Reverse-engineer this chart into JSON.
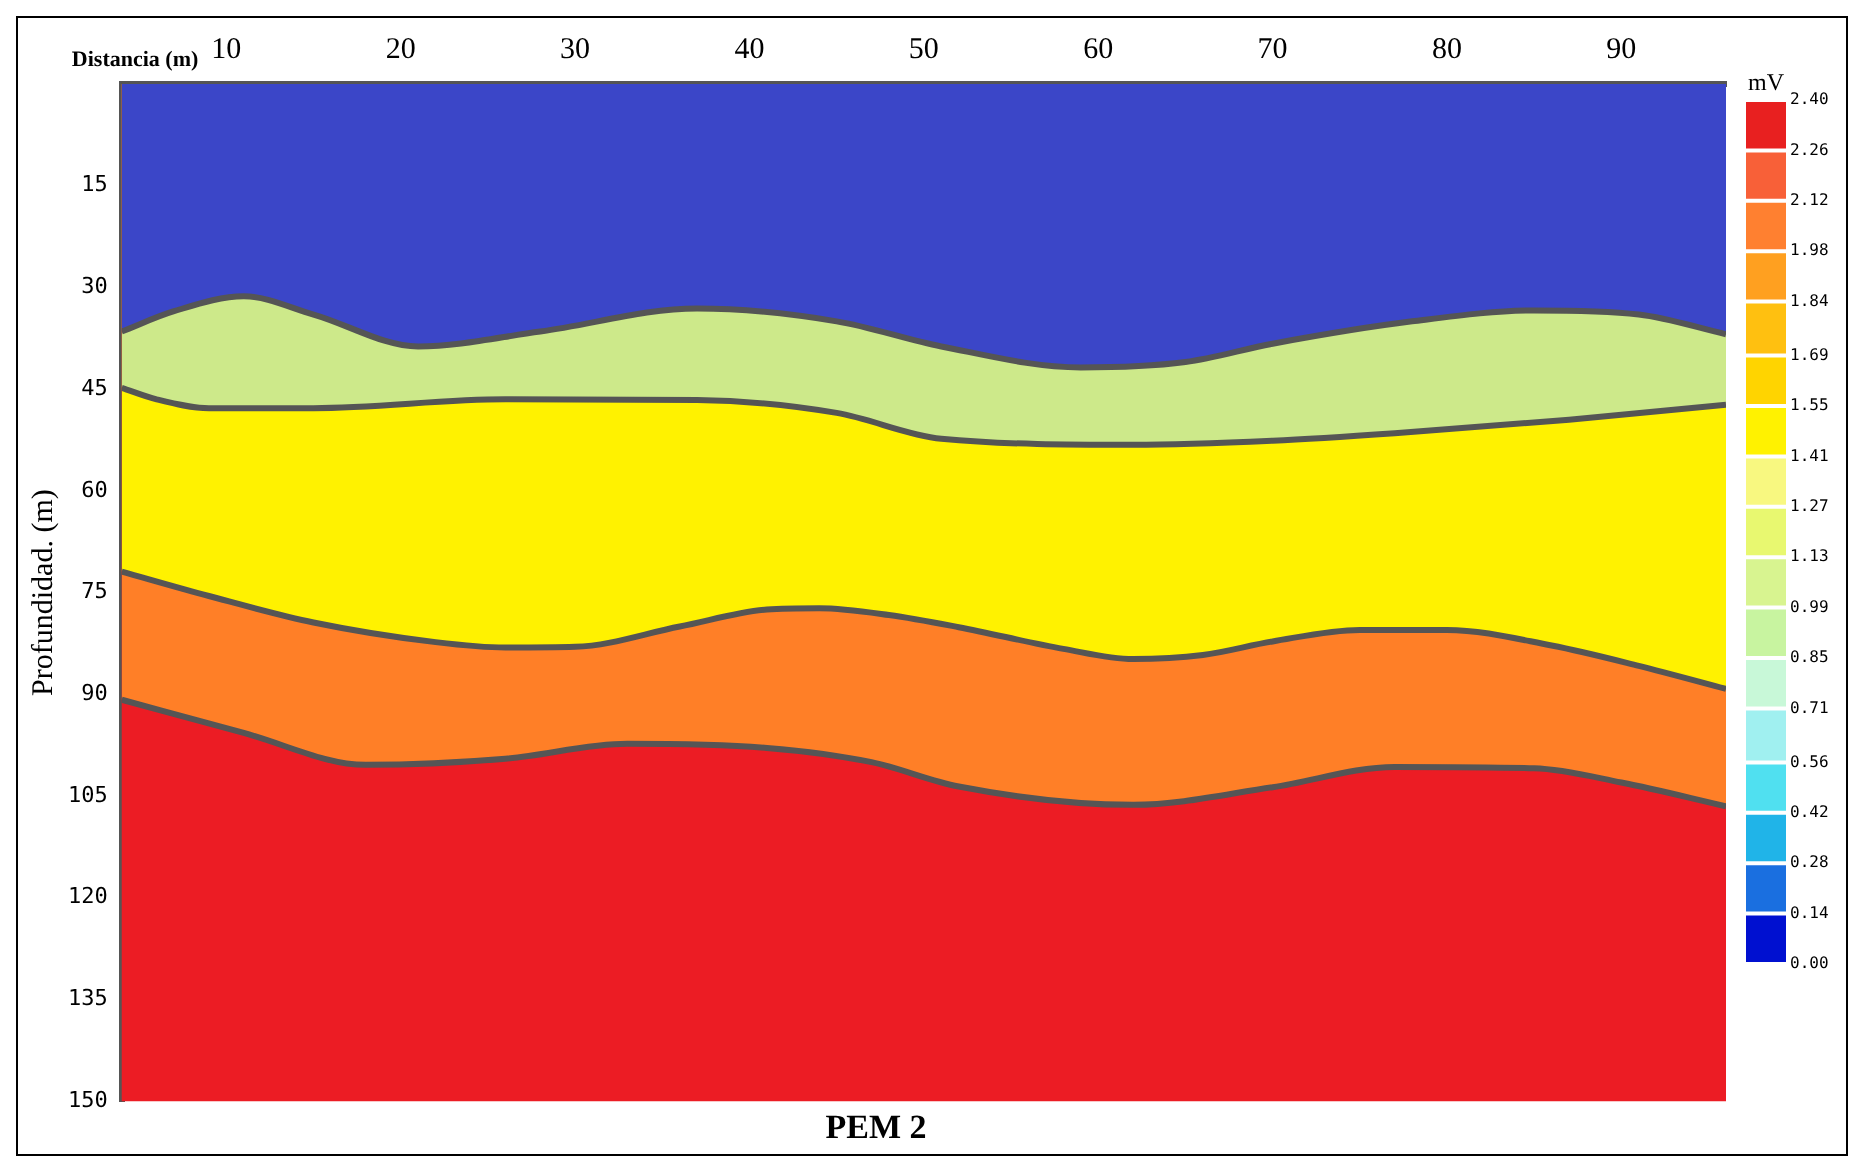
{
  "chart_data": {
    "type": "area",
    "title": "PEM 2",
    "xlabel": "Distancia (m)",
    "ylabel": "Profundidad. (m)",
    "clabel": "mV",
    "xlim": [
      4,
      96
    ],
    "xticks": [
      10,
      20,
      30,
      40,
      50,
      60,
      70,
      80,
      90
    ],
    "ylim": [
      150,
      0
    ],
    "yticks": [
      15,
      30,
      45,
      60,
      75,
      90,
      105,
      120,
      135,
      150
    ],
    "clim": [
      0,
      2.4
    ],
    "cticks": [
      {
        "value": 0,
        "label": "0.00"
      },
      0.14,
      0.28,
      0.42,
      0.56,
      0.71,
      0.85,
      0.99,
      1.13,
      1.27,
      1.41,
      1.55,
      1.69,
      1.84,
      1.98,
      2.12,
      2.26,
      {
        "value": 2.4,
        "label": "2.40"
      }
    ],
    "grid": false,
    "legend": false,
    "bands": [
      {
        "axis": "y",
        "from": 0,
        "to": 150,
        "color": "#ec1c24"
      }
    ],
    "series": [
      {
        "color": "#3b46c8",
        "x": [
          4,
          7,
          11,
          15,
          21,
          28,
          37,
          45,
          51,
          59,
          65,
          70,
          78,
          85,
          91,
          96
        ],
        "values": [
          36.5,
          33.5,
          31.3,
          34,
          38.7,
          36.5,
          33.1,
          35,
          38.7,
          41.8,
          41,
          38.3,
          35,
          33.4,
          34,
          36.9
        ]
      },
      {
        "color": "#cde98a",
        "x": [
          4,
          6,
          9,
          15,
          26,
          37,
          45,
          51,
          62,
          70,
          77,
          87,
          96
        ],
        "values": [
          44.8,
          46.5,
          47.8,
          47.8,
          46.5,
          46.6,
          48.5,
          52.3,
          53.2,
          52.6,
          51.5,
          49.5,
          47.3
        ]
      },
      {
        "color": "#fff200",
        "x": [
          4,
          9,
          15,
          22,
          26,
          30,
          36,
          41,
          44,
          48,
          52,
          58,
          62,
          66,
          70,
          75,
          80,
          86,
          91,
          96
        ],
        "values": [
          71.9,
          75.5,
          79.4,
          82.3,
          83.1,
          83,
          80,
          77.5,
          77.3,
          78.3,
          80.1,
          83.3,
          84.8,
          84.2,
          82.2,
          80.5,
          80.5,
          82.8,
          85.8,
          89.2
        ]
      },
      {
        "color": "#ff7f27",
        "x": [
          4,
          11,
          18,
          26,
          33,
          41,
          47,
          52,
          62,
          70,
          77,
          85,
          90,
          96
        ],
        "values": [
          90.8,
          95.7,
          100.4,
          99.5,
          97.3,
          97.9,
          100,
          103.6,
          106.3,
          103.7,
          100.7,
          100.9,
          103,
          106.5
        ]
      }
    ]
  }
}
